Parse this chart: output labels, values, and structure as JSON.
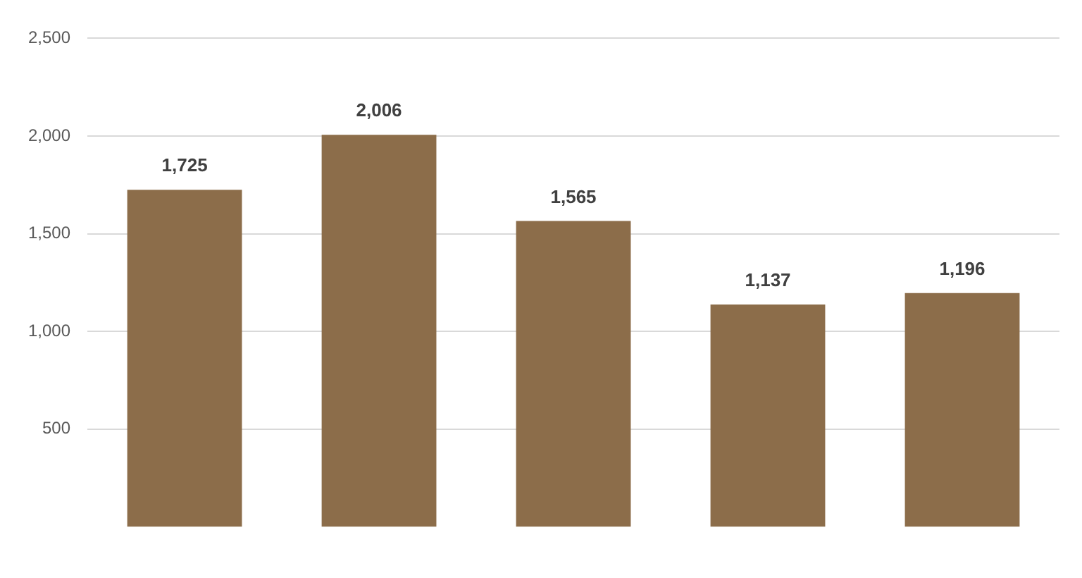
{
  "chart_data": {
    "type": "bar",
    "categories": [
      null,
      null,
      null,
      null,
      null
    ],
    "values": [
      1725,
      2006,
      1565,
      1137,
      1196
    ],
    "value_labels": [
      "1,725",
      "2,006",
      "1,565",
      "1,137",
      "1,196"
    ],
    "color": "#8c6d4a",
    "ylim": [
      0,
      2500
    ],
    "yticks": [
      500,
      {
        "value": 1000,
        "label": "1,000"
      },
      {
        "value": 1500,
        "label": "1,500"
      },
      {
        "value": 2000,
        "label": "2,000"
      },
      {
        "value": 2500,
        "label": "2,500"
      }
    ],
    "grid": "y"
  }
}
